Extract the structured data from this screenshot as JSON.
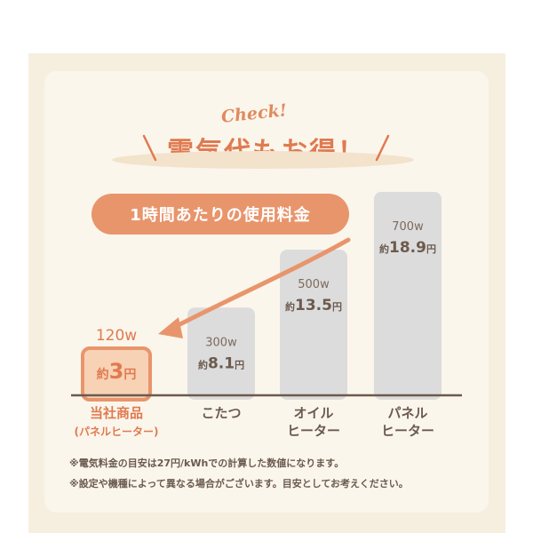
{
  "header": {
    "check": "Check!",
    "title": "電気代もお得！",
    "subtitle": "1時間あたりの使用料金"
  },
  "colors": {
    "accent": "#e8956c",
    "bar": "#dddcdc",
    "highlight_bar": "#f8d2b4",
    "text": "#6b5a4e",
    "background": "#fbf6ec"
  },
  "chart_data": {
    "type": "bar",
    "categories": [
      {
        "line1": "当社商品",
        "line2": "(パネルヒーター)"
      },
      {
        "line1": "こたつ",
        "line2": ""
      },
      {
        "line1": "オイル",
        "line2": "ヒーター"
      },
      {
        "line1": "パネル",
        "line2": "ヒーター"
      }
    ],
    "power": [
      "120w",
      "300w",
      "500w",
      "700w"
    ],
    "cost_prefix": "約",
    "cost_unit": "円",
    "cost_labels": [
      "3",
      "8.1",
      "13.5",
      "18.9"
    ],
    "values": [
      3,
      8.1,
      13.5,
      18.9
    ],
    "highlight_index": 0,
    "ylim": [
      0,
      18.9
    ]
  },
  "notes": [
    "※電気料金の目安は27円/kWhでの計算した数値になります。",
    "※設定や機種によって異なる場合がございます。目安としてお考えください。"
  ]
}
